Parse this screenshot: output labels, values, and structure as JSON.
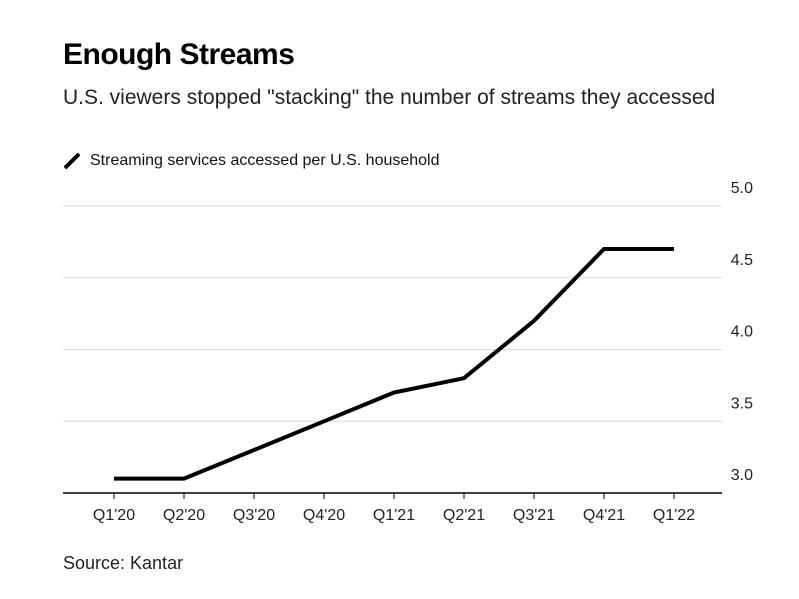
{
  "title": "Enough Streams",
  "subtitle": "U.S. viewers stopped \"stacking\" the number of streams they accessed",
  "source": "Source: Kantar",
  "chart_data": {
    "type": "line",
    "title": "Enough Streams",
    "subtitle": "U.S. viewers stopped \"stacking\" the number of streams they accessed",
    "xlabel": "",
    "ylabel": "",
    "categories": [
      "Q1'20",
      "Q2'20",
      "Q3'20",
      "Q4'20",
      "Q1'21",
      "Q2'21",
      "Q3'21",
      "Q4'21",
      "Q1'22"
    ],
    "series": [
      {
        "name": "Streaming services accessed per U.S. household",
        "values": [
          3.1,
          3.1,
          3.3,
          3.5,
          3.7,
          3.8,
          4.2,
          4.7,
          4.7
        ],
        "color": "#000000"
      }
    ],
    "yticks": [
      "3.0",
      "3.5",
      "4.0",
      "4.5",
      "5.0"
    ],
    "ylim": [
      3.0,
      5.0
    ],
    "grid": true,
    "legend_position": "top-left",
    "y_axis_side": "right"
  }
}
